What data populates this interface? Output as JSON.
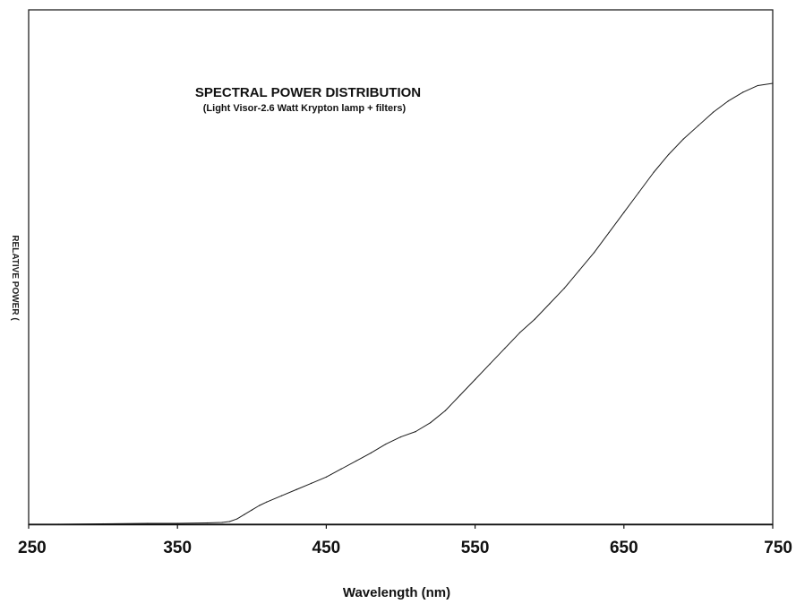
{
  "chart_data": {
    "type": "line",
    "title": "SPECTRAL POWER DISTRIBUTION",
    "subtitle": "(Light Visor-2.6 Watt Krypton lamp + filters)",
    "xlabel": "Wavelength (nm)",
    "ylabel": "RELATIVE POWER (",
    "xlim": [
      250,
      750
    ],
    "ylim": [
      0,
      1
    ],
    "x_ticks": [
      250,
      350,
      450,
      550,
      650,
      750
    ],
    "x_tick_labels": [
      "250",
      "350",
      "450",
      "550",
      "650",
      "750"
    ],
    "y_ticks": [],
    "grid": false,
    "legend": "none",
    "series": [
      {
        "x": [
          250,
          270,
          300,
          330,
          350,
          370,
          380,
          385,
          390,
          395,
          400,
          405,
          410,
          420,
          430,
          440,
          450,
          460,
          470,
          480,
          490,
          500,
          510,
          520,
          530,
          540,
          550,
          560,
          570,
          580,
          590,
          600,
          610,
          620,
          630,
          640,
          650,
          660,
          670,
          680,
          690,
          700,
          710,
          720,
          730,
          740,
          750
        ],
        "y": [
          0,
          0,
          0.001,
          0.002,
          0.002,
          0.003,
          0.004,
          0.006,
          0.012,
          0.022,
          0.032,
          0.042,
          0.05,
          0.064,
          0.078,
          0.092,
          0.106,
          0.124,
          0.142,
          0.16,
          0.18,
          0.196,
          0.208,
          0.228,
          0.255,
          0.29,
          0.325,
          0.36,
          0.395,
          0.43,
          0.46,
          0.495,
          0.53,
          0.57,
          0.61,
          0.655,
          0.7,
          0.745,
          0.79,
          0.83,
          0.865,
          0.895,
          0.925,
          0.95,
          0.97,
          0.985,
          0.99
        ]
      }
    ],
    "colors": {
      "line": "#1a1a1a",
      "axes": "#111111",
      "background": "#ffffff"
    }
  }
}
